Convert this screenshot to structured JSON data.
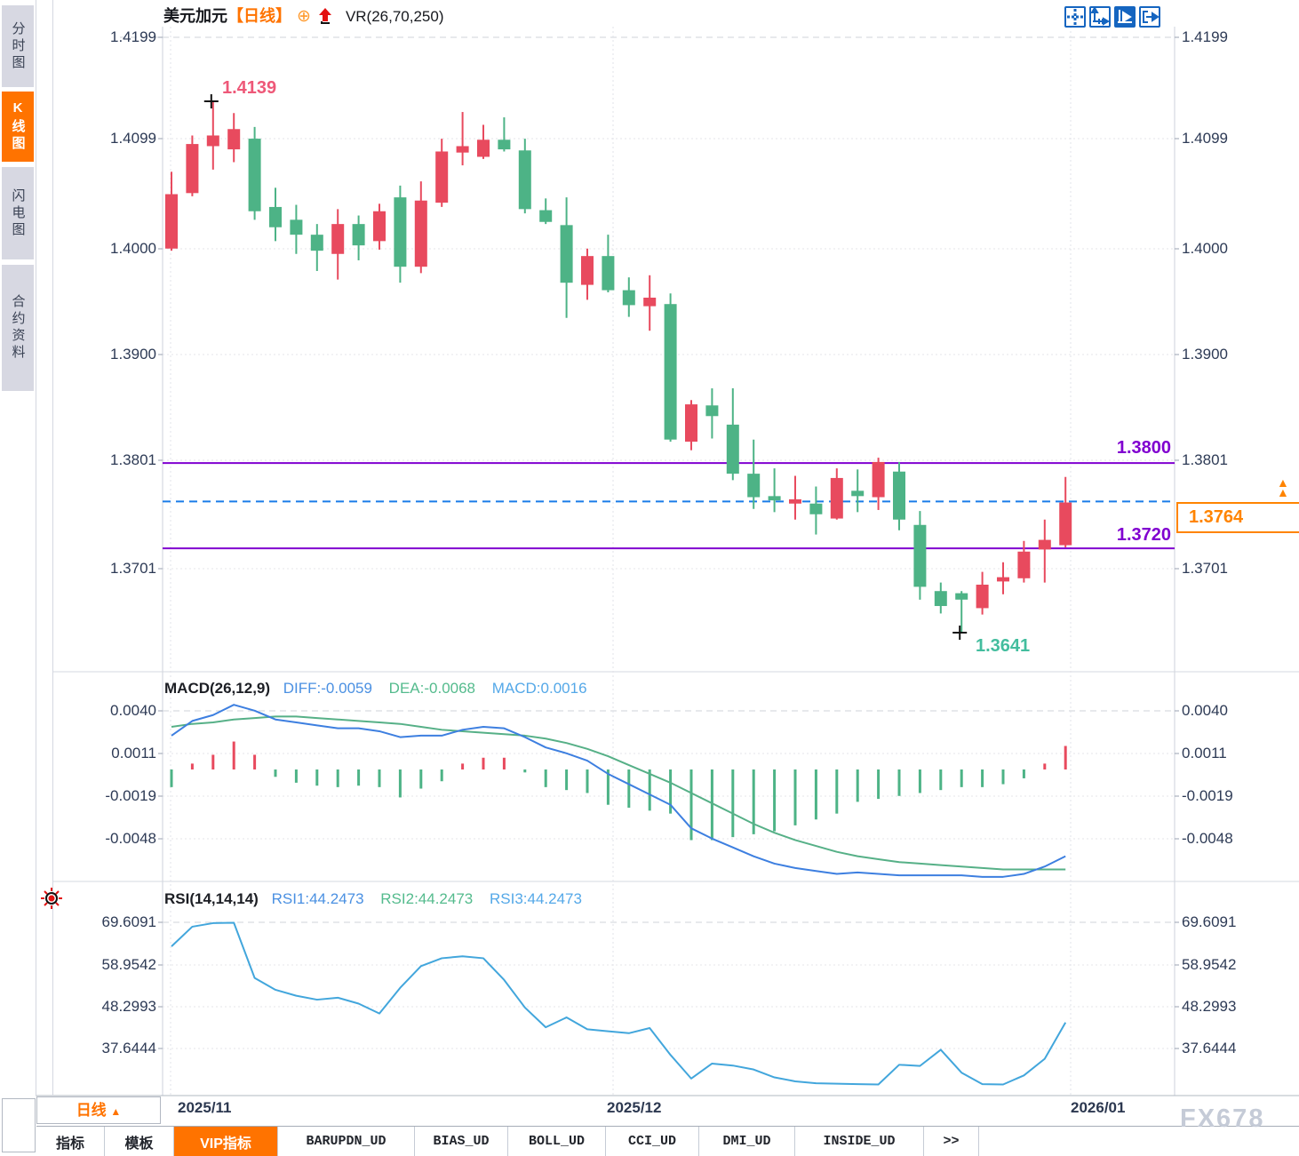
{
  "window": {
    "watermark": "FX678"
  },
  "colors": {
    "accent_orange": "#ff7300",
    "bull_red": "#e84a5e",
    "bear_green": "#4db386",
    "level_purple": "#8000d0",
    "current_blue": "#1a7ce8",
    "diff_blue": "#3d7fe0",
    "dea_green": "#56b087",
    "rsi_blue": "#42a6dc",
    "toolbar_blue": "#1565c0",
    "high_label_red": "#ee5878",
    "low_label_teal": "#43bd9e"
  },
  "sidebar": {
    "items": [
      {
        "label": "分时图",
        "active": false
      },
      {
        "label": "K线图",
        "active": true
      },
      {
        "label": "闪电图",
        "active": false
      },
      {
        "label": "合约资料",
        "active": false
      }
    ]
  },
  "header": {
    "symbol": "美元加元",
    "period_tag": "【日线】",
    "compare_icon": "⊕",
    "indicator": "VR(26,70,250)"
  },
  "toolbar_icons": [
    {
      "name": "crosshair-icon"
    },
    {
      "name": "axis-zoom-icon"
    },
    {
      "name": "axis-play-icon",
      "active": true
    },
    {
      "name": "axis-shift-icon"
    }
  ],
  "macd_header": {
    "title": "MACD(26,12,9)",
    "diff_label": "DIFF:-0.0059",
    "dea_label": "DEA:-0.0068",
    "macd_label": "MACD:0.0016"
  },
  "rsi_header": {
    "title": "RSI(14,14,14)",
    "rsi1_label": "RSI1:44.2473",
    "rsi2_label": "RSI2:44.2473",
    "rsi3_label": "RSI3:44.2473"
  },
  "axes": {
    "main_ticks": [
      "1.4199",
      "1.4099",
      "1.4000",
      "1.3900",
      "1.3801",
      "1.3701"
    ],
    "macd_ticks": [
      "0.0040",
      "0.0011",
      "-0.0019",
      "-0.0048"
    ],
    "rsi_ticks": [
      "69.6091",
      "58.9542",
      "48.2993",
      "37.6444"
    ]
  },
  "x_axis": {
    "dates": [
      "2025/11",
      "2025/12",
      "2026/01"
    ]
  },
  "period_button": {
    "label": "日线",
    "arrow": "▲"
  },
  "tabs": [
    {
      "label": "指标",
      "active": false,
      "mono": false
    },
    {
      "label": "模板",
      "active": false,
      "mono": false
    },
    {
      "label": "VIP指标",
      "active": true,
      "mono": false
    },
    {
      "label": "BARUPDN_UD",
      "active": false,
      "mono": true
    },
    {
      "label": "BIAS_UD",
      "active": false,
      "mono": true
    },
    {
      "label": "BOLL_UD",
      "active": false,
      "mono": true
    },
    {
      "label": "CCI_UD",
      "active": false,
      "mono": true
    },
    {
      "label": "DMI_UD",
      "active": false,
      "mono": true
    },
    {
      "label": "INSIDE_UD",
      "active": false,
      "mono": true
    },
    {
      "label": ">>",
      "active": false,
      "mono": true
    }
  ],
  "annotations": {
    "high_label": "1.4139",
    "low_label": "1.3641",
    "resistance_label": "1.3800",
    "support_label": "1.3720",
    "price_label": "1.3764"
  },
  "chart_data": {
    "type": "candlestick_with_macd_rsi",
    "title": "美元加元 USD/CAD 日线",
    "price_axis": {
      "min": 1.362,
      "max": 1.4213,
      "ticks": [
        1.4199,
        1.4099,
        1.4,
        1.39,
        1.3801,
        1.3701
      ]
    },
    "dates": [
      "2025/11",
      "2025/12",
      "2026/01"
    ],
    "levels": {
      "resistance": 1.38,
      "support": 1.372,
      "current_price": 1.3764,
      "period_high": 1.4139,
      "period_low": 1.3641
    },
    "high_candle_index": 2,
    "low_candle_index": 38,
    "candles_format": [
      "direction r=up g=down",
      "high",
      "body_top",
      "body_bottom",
      "low"
    ],
    "candles": [
      [
        "r",
        1.4073,
        1.4052,
        1.4001,
        1.3999
      ],
      [
        "r",
        1.4107,
        1.4099,
        1.4053,
        1.405
      ],
      [
        "r",
        1.4139,
        1.4107,
        1.4097,
        1.4075
      ],
      [
        "r",
        1.4128,
        1.4113,
        1.4094,
        1.4082
      ],
      [
        "g",
        1.4115,
        1.4104,
        1.4036,
        1.4028
      ],
      [
        "g",
        1.4058,
        1.404,
        1.4021,
        1.4008
      ],
      [
        "g",
        1.4042,
        1.4028,
        1.4014,
        1.3996
      ],
      [
        "g",
        1.4024,
        1.4014,
        1.3999,
        1.398
      ],
      [
        "r",
        1.4038,
        1.4024,
        1.3996,
        1.3972
      ],
      [
        "g",
        1.4032,
        1.4024,
        1.4004,
        1.399
      ],
      [
        "r",
        1.4043,
        1.4036,
        1.4008,
        1.4
      ],
      [
        "g",
        1.406,
        1.4049,
        1.3984,
        1.3969
      ],
      [
        "r",
        1.4064,
        1.4046,
        1.3984,
        1.3978
      ],
      [
        "r",
        1.4104,
        1.4092,
        1.4044,
        1.404
      ],
      [
        "r",
        1.4129,
        1.4097,
        1.4091,
        1.4079
      ],
      [
        "r",
        1.4117,
        1.4103,
        1.4087,
        1.4085
      ],
      [
        "g",
        1.4124,
        1.4103,
        1.4094,
        1.4092
      ],
      [
        "g",
        1.4104,
        1.4093,
        1.4038,
        1.4034
      ],
      [
        "g",
        1.4048,
        1.4037,
        1.4026,
        1.4024
      ],
      [
        "g",
        1.4049,
        1.4023,
        1.3969,
        1.3936
      ],
      [
        "r",
        1.4001,
        1.3994,
        1.3967,
        1.3953
      ],
      [
        "g",
        1.4014,
        1.3994,
        1.3962,
        1.396
      ],
      [
        "g",
        1.3974,
        1.3962,
        1.3948,
        1.3937
      ],
      [
        "r",
        1.3976,
        1.3955,
        1.3947,
        1.3924
      ],
      [
        "g",
        1.3959,
        1.3949,
        1.3822,
        1.382
      ],
      [
        "r",
        1.3859,
        1.3855,
        1.382,
        1.3812
      ],
      [
        "g",
        1.387,
        1.3854,
        1.3844,
        1.3823
      ],
      [
        "g",
        1.387,
        1.3836,
        1.379,
        1.3784
      ],
      [
        "g",
        1.3822,
        1.379,
        1.3768,
        1.3757
      ],
      [
        "g",
        1.3795,
        1.3769,
        1.3765,
        1.3754
      ],
      [
        "r",
        1.3788,
        1.3766,
        1.3762,
        1.3747
      ],
      [
        "g",
        1.3778,
        1.3762,
        1.3752,
        1.3733
      ],
      [
        "r",
        1.3795,
        1.3786,
        1.3748,
        1.3747
      ],
      [
        "g",
        1.3794,
        1.3774,
        1.3769,
        1.3754
      ],
      [
        "r",
        1.3805,
        1.3801,
        1.3768,
        1.3756
      ],
      [
        "g",
        1.3801,
        1.3792,
        1.3747,
        1.3737
      ],
      [
        "g",
        1.3755,
        1.3742,
        1.3684,
        1.3672
      ],
      [
        "g",
        1.3688,
        1.368,
        1.3666,
        1.3659
      ],
      [
        "g",
        1.368,
        1.3678,
        1.3672,
        1.3641
      ],
      [
        "r",
        1.3698,
        1.3686,
        1.3664,
        1.3658
      ],
      [
        "r",
        1.3707,
        1.3693,
        1.3689,
        1.3677
      ],
      [
        "r",
        1.3727,
        1.3717,
        1.3692,
        1.3688
      ],
      [
        "r",
        1.3747,
        1.3728,
        1.3719,
        1.3688
      ],
      [
        "r",
        1.3787,
        1.3763,
        1.3723,
        1.3721
      ]
    ],
    "macd": {
      "params": "26,12,9",
      "diff_last": -0.0059,
      "dea_last": -0.0068,
      "macd_last": 0.0016,
      "ticks": [
        0.004,
        0.0011,
        -0.0019,
        -0.0048
      ],
      "diff": [
        0.0023,
        0.0033,
        0.0037,
        0.0044,
        0.004,
        0.0034,
        0.0032,
        0.003,
        0.0028,
        0.0028,
        0.0026,
        0.0022,
        0.0023,
        0.0023,
        0.0027,
        0.0029,
        0.0028,
        0.0022,
        0.0015,
        0.0011,
        0.0006,
        -0.0003,
        -0.001,
        -0.0017,
        -0.0024,
        -0.004,
        -0.0047,
        -0.0053,
        -0.0059,
        -0.0064,
        -0.0067,
        -0.0069,
        -0.0071,
        -0.007,
        -0.0071,
        -0.0072,
        -0.0072,
        -0.0072,
        -0.0072,
        -0.0073,
        -0.0073,
        -0.0071,
        -0.0066,
        -0.0059
      ],
      "dea": [
        0.0029,
        0.0031,
        0.0032,
        0.0034,
        0.0035,
        0.0036,
        0.0036,
        0.0035,
        0.0034,
        0.0033,
        0.0032,
        0.0031,
        0.0029,
        0.0027,
        0.0026,
        0.0025,
        0.0024,
        0.0023,
        0.0021,
        0.0018,
        0.0014,
        0.0009,
        0.0003,
        -0.0003,
        -0.0009,
        -0.0016,
        -0.0023,
        -0.003,
        -0.0037,
        -0.0043,
        -0.0048,
        -0.0052,
        -0.0056,
        -0.0059,
        -0.0061,
        -0.0063,
        -0.0064,
        -0.0065,
        -0.0066,
        -0.0067,
        -0.0068,
        -0.0068,
        -0.0068,
        -0.0068
      ],
      "hist": [
        -0.0012,
        0.0004,
        0.001,
        0.0019,
        0.001,
        -0.0005,
        -0.0009,
        -0.0011,
        -0.0012,
        -0.0011,
        -0.0012,
        -0.0019,
        -0.0013,
        -0.0008,
        0.0004,
        0.0008,
        0.0008,
        -0.0002,
        -0.0012,
        -0.0014,
        -0.0016,
        -0.0024,
        -0.0026,
        -0.0028,
        -0.003,
        -0.0048,
        -0.0048,
        -0.0046,
        -0.0044,
        -0.0042,
        -0.0038,
        -0.0034,
        -0.003,
        -0.0022,
        -0.002,
        -0.0018,
        -0.0016,
        -0.0014,
        -0.0012,
        -0.0012,
        -0.001,
        -0.0006,
        0.0004,
        0.0016
      ]
    },
    "rsi": {
      "params": "14,14,14",
      "rsi1_last": 44.2473,
      "rsi2_last": 44.2473,
      "rsi3_last": 44.2473,
      "ticks": [
        69.6091,
        58.9542,
        48.2993,
        37.6444
      ],
      "values": [
        63.5,
        68.5,
        69.4,
        69.5,
        55.5,
        52.5,
        51.0,
        50.0,
        50.5,
        49.0,
        46.5,
        53.0,
        58.5,
        60.5,
        61.0,
        60.5,
        55.0,
        48.0,
        43.0,
        45.5,
        42.5,
        42.0,
        41.5,
        42.8,
        36.0,
        30.0,
        33.8,
        33.3,
        32.3,
        30.3,
        29.3,
        28.8,
        28.7,
        28.6,
        28.5,
        33.5,
        33.2,
        37.3,
        31.5,
        28.6,
        28.5,
        30.8,
        35.0,
        44.2
      ]
    }
  }
}
